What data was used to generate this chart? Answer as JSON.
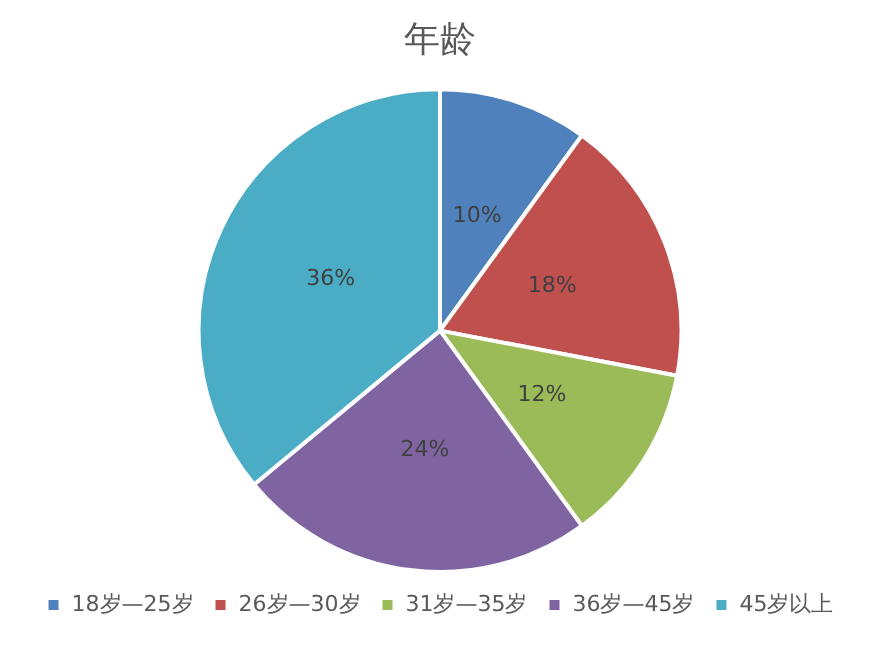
{
  "chart_data": {
    "type": "pie",
    "title": "年龄",
    "categories": [
      "18岁—25岁",
      "26岁—30岁",
      "31岁—35岁",
      "36岁—45岁",
      "45岁以上"
    ],
    "values": [
      10,
      18,
      12,
      24,
      36
    ],
    "colors": [
      "#4f81bd",
      "#c0504d",
      "#9bbb59",
      "#8064a2",
      "#4bacc6"
    ],
    "value_labels": [
      "10%",
      "18%",
      "12%",
      "24%",
      "36%"
    ],
    "legend": "bottom"
  }
}
